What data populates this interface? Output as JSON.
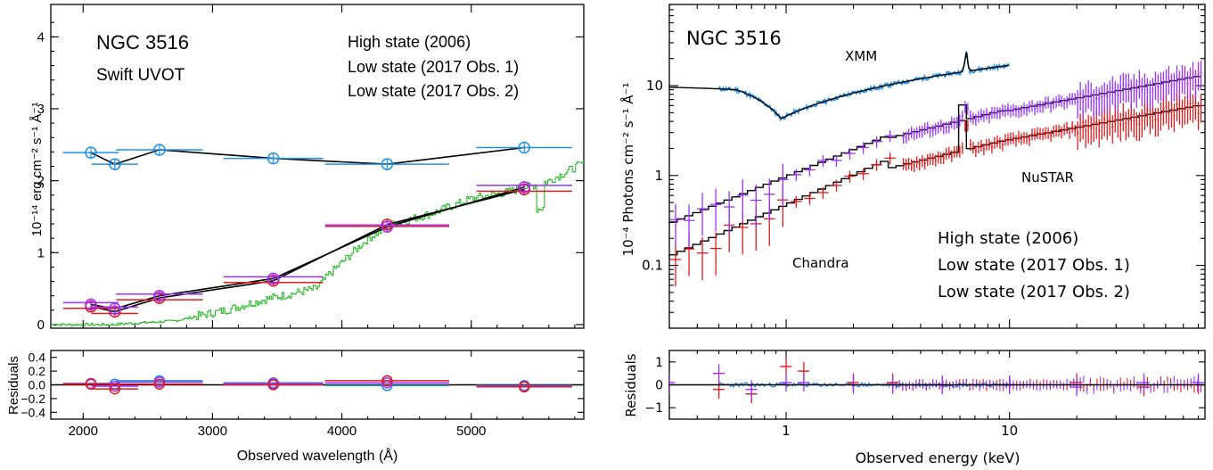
{
  "colors": {
    "high": "#1E90E8",
    "low1": "#E41A1C",
    "low2": "#9B30FF",
    "model": "#000000",
    "template": "#2CB82C"
  },
  "left": {
    "title": "NGC 3516",
    "subtitle": "Swift UVOT",
    "legend": [
      "High state (2006)",
      "Low state  (2017 Obs. 1)",
      "Low state  (2017 Obs. 2)"
    ],
    "ylabel": "10⁻¹⁴ erg cm⁻² s⁻¹ Å⁻¹",
    "residual_label": "Residuals",
    "xlabel": "Observed wavelength (Å)",
    "xticks": [
      "2000",
      "3000",
      "4000",
      "5000"
    ],
    "yticks": [
      "0",
      "1",
      "2",
      "3",
      "4"
    ],
    "res_yticks": [
      "0.4",
      "0.2",
      "0.0",
      "−0.2",
      "−0.4"
    ]
  },
  "right": {
    "title": "NGC 3516",
    "annotations": [
      "XMM",
      "NuSTAR",
      "Chandra"
    ],
    "legend": [
      "High state (2006)",
      "Low state (2017 Obs. 1)",
      "Low state (2017 Obs. 2)"
    ],
    "ylabel": "10⁻⁴ Photons cm⁻² s⁻¹ Å⁻¹",
    "residual_label": "Residuals",
    "xlabel": "Observed energy (keV)",
    "xticks": [
      "1",
      "10"
    ],
    "yticks": [
      "10",
      "1",
      "0.1"
    ],
    "res_yticks": [
      "1",
      "0",
      "−1"
    ]
  },
  "chart_data": [
    {
      "type": "scatter",
      "title": "NGC 3516",
      "subtitle": "Swift UVOT",
      "xlabel": "Observed wavelength (Å)",
      "ylabel": "10⁻¹⁴ erg cm⁻² s⁻¹ Å⁻¹",
      "xlim": [
        1750,
        5870
      ],
      "ylim": [
        -0.05,
        4.45
      ],
      "series": [
        {
          "name": "High state (2006)",
          "color": "#1E90E8",
          "x": [
            2060,
            2245,
            2590,
            3470,
            4350,
            5410
          ],
          "xerr": [
            215,
            180,
            335,
            385,
            480,
            370
          ],
          "y": [
            2.39,
            2.23,
            2.43,
            2.31,
            2.23,
            2.46
          ]
        },
        {
          "name": "Low state  (2017 Obs. 1)",
          "color": "#E41A1C",
          "x": [
            2060,
            2245,
            2590,
            3470,
            4350,
            5410
          ],
          "xerr": [
            215,
            180,
            335,
            385,
            480,
            370
          ],
          "y": [
            0.25,
            0.18,
            0.37,
            0.61,
            1.39,
            1.88
          ]
        },
        {
          "name": "Low state  (2017 Obs. 2)",
          "color": "#9B30FF",
          "x": [
            2060,
            2245,
            2590,
            3470,
            4350,
            5410
          ],
          "xerr": [
            215,
            180,
            335,
            385,
            480,
            370
          ],
          "y": [
            0.28,
            0.22,
            0.4,
            0.64,
            1.36,
            1.91
          ]
        }
      ],
      "residuals": {
        "ylim": [
          -0.5,
          0.5
        ],
        "x": [
          2060,
          2245,
          2590,
          3470,
          4350,
          5410
        ],
        "high": [
          0.02,
          0.01,
          0.06,
          0.03,
          -0.01,
          -0.01
        ],
        "low1": [
          0.01,
          -0.06,
          0.01,
          0.0,
          0.06,
          -0.03
        ],
        "low2": [
          0.02,
          -0.02,
          0.04,
          0.02,
          0.03,
          -0.02
        ]
      }
    },
    {
      "type": "line",
      "title": "NGC 3516",
      "xlabel": "Observed energy (keV)",
      "ylabel": "10⁻⁴ Photons cm⁻² s⁻¹ Å⁻¹",
      "xscale": "log",
      "yscale": "log",
      "xlim": [
        0.3,
        75
      ],
      "ylim": [
        0.02,
        80
      ],
      "series": [
        {
          "name": "High state (2006)",
          "color": "#1E90E8",
          "x": [
            0.3,
            0.5,
            0.7,
            0.9,
            1.2,
            2,
            3,
            5,
            6.4,
            8,
            10
          ],
          "y": [
            9.5,
            9.0,
            6.5,
            4.5,
            6.0,
            9.0,
            11.0,
            14.0,
            22.0,
            16.0,
            17.0
          ]
        },
        {
          "name": "Low state (2017 Obs. 1)",
          "color": "#E41A1C",
          "x": [
            0.3,
            0.5,
            0.7,
            1.0,
            1.5,
            2,
            3,
            5,
            6.4,
            8,
            10,
            20,
            40,
            70
          ],
          "y": [
            0.12,
            0.18,
            0.2,
            0.25,
            0.4,
            0.6,
            0.9,
            1.6,
            3.6,
            2.0,
            2.6,
            4.0,
            5.5,
            6.0
          ]
        },
        {
          "name": "Low state (2017 Obs. 2)",
          "color": "#9B30FF",
          "x": [
            0.3,
            0.5,
            0.7,
            1.0,
            1.5,
            2,
            3,
            5,
            6.4,
            8,
            10,
            20,
            40,
            70
          ],
          "y": [
            0.3,
            0.6,
            0.35,
            0.5,
            1.0,
            1.7,
            2.6,
            3.8,
            5.6,
            4.3,
            5.0,
            7.0,
            9.0,
            11.0
          ]
        }
      ],
      "residuals": {
        "ylim": [
          -1.5,
          1.5
        ],
        "x": [
          0.3,
          0.5,
          0.7,
          1.0,
          1.2,
          2,
          3,
          5,
          10,
          20,
          40,
          70
        ],
        "low1": [
          0.0,
          -0.2,
          -0.4,
          0.8,
          0.6,
          0.1,
          0.1,
          0.0,
          0.0,
          0.1,
          -0.1,
          0.0
        ],
        "low2": [
          0.1,
          0.5,
          -0.2,
          0.1,
          0.1,
          0.0,
          0.0,
          0.0,
          0.0,
          -0.1,
          0.1,
          0.1
        ]
      }
    }
  ]
}
